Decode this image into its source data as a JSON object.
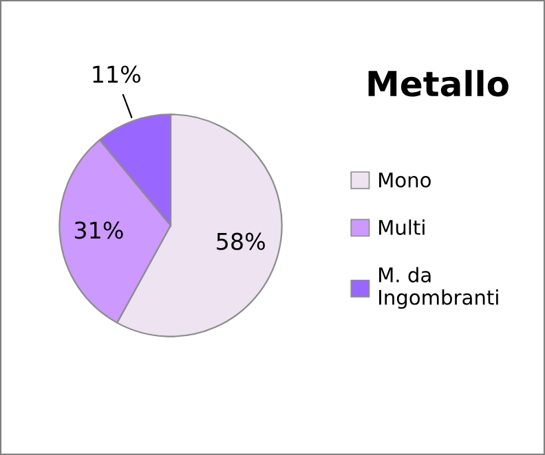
{
  "chart_data": {
    "type": "pie",
    "title": "Metallo",
    "categories": [
      "Mono",
      "Multi",
      "M. da\nIngombranti"
    ],
    "values": [
      58,
      31,
      11
    ],
    "colors": [
      "#ede3f1",
      "#cc99ff",
      "#9966ff"
    ],
    "value_labels": [
      "58%",
      "31%",
      "11%"
    ],
    "legend": "right"
  }
}
